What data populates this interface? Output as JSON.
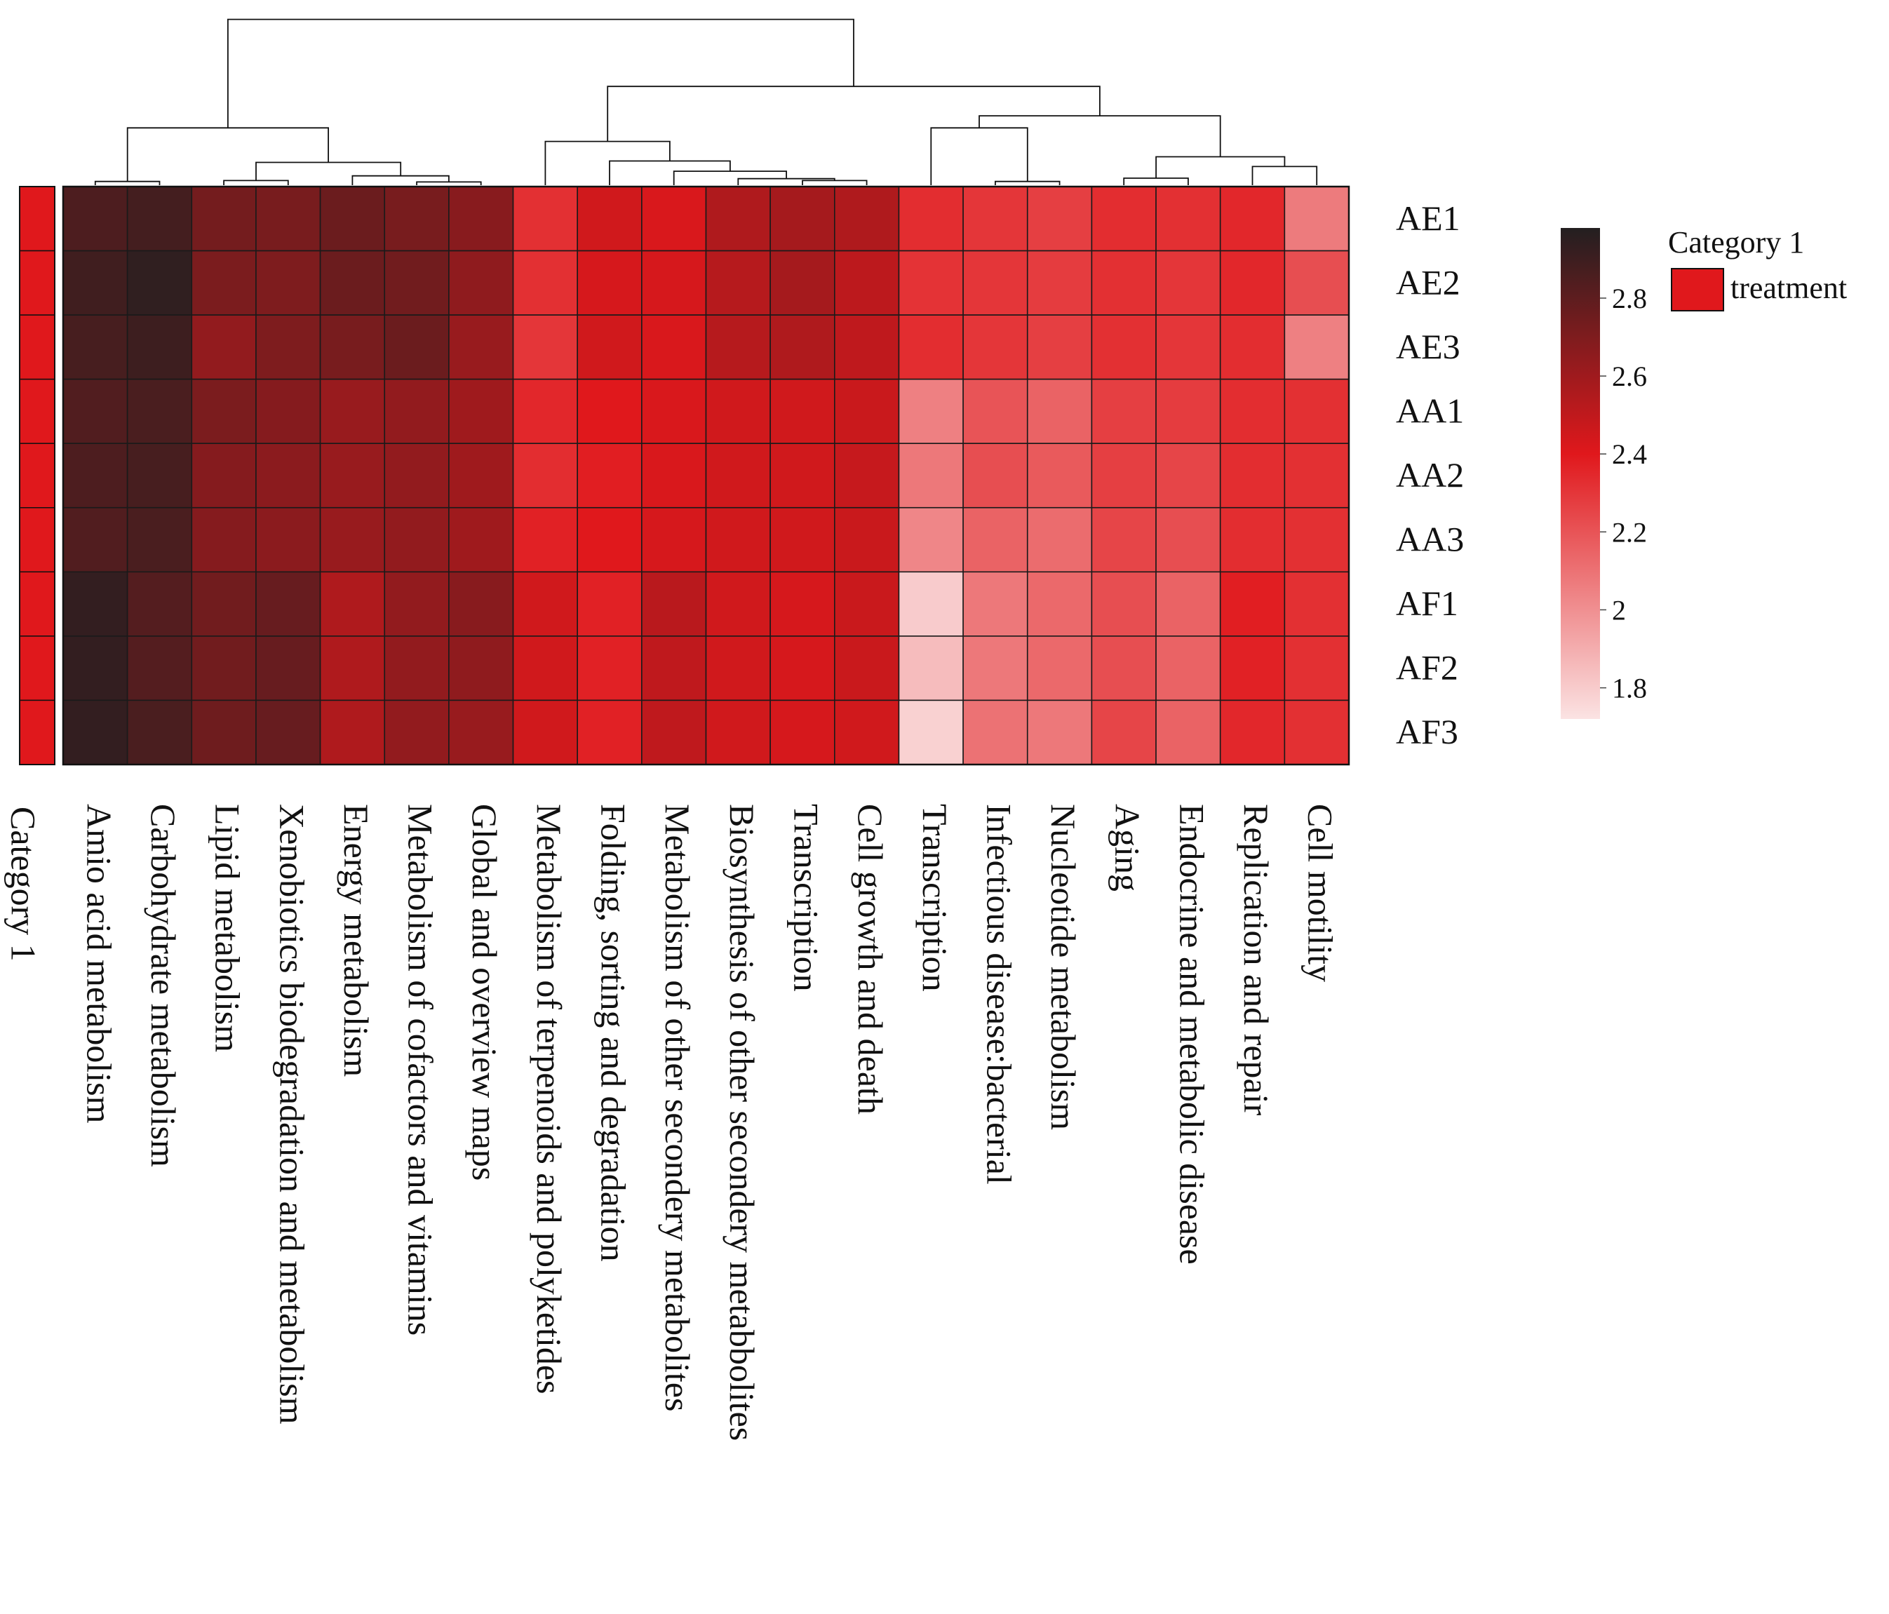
{
  "chart_data": {
    "type": "heatmap",
    "rows": [
      "AE1",
      "AE2",
      "AE3",
      "AA1",
      "AA2",
      "AA3",
      "AF1",
      "AF2",
      "AF3"
    ],
    "columns": [
      "Amio acid metabolism",
      "Carbohydrate metabolism",
      "Lipid metabolism",
      "Xenobiotics biodegradation and metabolism",
      "Energy metabolism",
      "Metabolism of cofactors and vitamins",
      "Global and overview maps",
      "Metabolism of terpenoids and polyketides",
      "Folding, sorting and degradation",
      "Metabolism of other secondery metabolites",
      "Biosynthesis of other secondery metabbolites",
      "Transcription",
      "Cell growth and death",
      "Transcription",
      "Infectious disease:bacterial",
      "Nucleotide metabolism",
      "Aging",
      "Endocrine and metabolic disease",
      "Replication and repair",
      "Cell motility"
    ],
    "category": {
      "label": "Category 1",
      "values": [
        "treatment",
        "treatment",
        "treatment",
        "treatment",
        "treatment",
        "treatment",
        "treatment",
        "treatment",
        "treatment"
      ],
      "color": "#e0181c"
    },
    "values": [
      [
        2.85,
        2.88,
        2.73,
        2.72,
        2.76,
        2.72,
        2.67,
        2.32,
        2.45,
        2.42,
        2.55,
        2.58,
        2.55,
        2.33,
        2.3,
        2.27,
        2.33,
        2.32,
        2.35,
        2.07
      ],
      [
        2.89,
        2.94,
        2.71,
        2.7,
        2.76,
        2.74,
        2.65,
        2.32,
        2.43,
        2.43,
        2.53,
        2.58,
        2.51,
        2.31,
        2.3,
        2.28,
        2.32,
        2.3,
        2.35,
        2.22
      ],
      [
        2.87,
        2.9,
        2.64,
        2.7,
        2.72,
        2.76,
        2.62,
        2.3,
        2.45,
        2.42,
        2.53,
        2.55,
        2.5,
        2.33,
        2.3,
        2.27,
        2.32,
        2.3,
        2.33,
        2.05
      ],
      [
        2.84,
        2.86,
        2.71,
        2.68,
        2.62,
        2.64,
        2.6,
        2.35,
        2.4,
        2.42,
        2.45,
        2.45,
        2.47,
        2.05,
        2.2,
        2.15,
        2.27,
        2.28,
        2.33,
        2.32
      ],
      [
        2.85,
        2.87,
        2.68,
        2.66,
        2.62,
        2.64,
        2.6,
        2.33,
        2.38,
        2.42,
        2.45,
        2.45,
        2.48,
        2.08,
        2.22,
        2.18,
        2.27,
        2.25,
        2.33,
        2.32
      ],
      [
        2.84,
        2.86,
        2.68,
        2.66,
        2.62,
        2.64,
        2.6,
        2.37,
        2.4,
        2.43,
        2.45,
        2.45,
        2.47,
        2.03,
        2.15,
        2.12,
        2.25,
        2.22,
        2.33,
        2.32
      ],
      [
        2.93,
        2.83,
        2.74,
        2.77,
        2.55,
        2.64,
        2.67,
        2.45,
        2.37,
        2.52,
        2.45,
        2.43,
        2.47,
        1.8,
        2.08,
        2.13,
        2.22,
        2.15,
        2.38,
        2.32
      ],
      [
        2.93,
        2.83,
        2.74,
        2.77,
        2.55,
        2.64,
        2.65,
        2.45,
        2.37,
        2.5,
        2.45,
        2.43,
        2.47,
        1.85,
        2.08,
        2.13,
        2.22,
        2.15,
        2.37,
        2.32
      ],
      [
        2.93,
        2.86,
        2.75,
        2.77,
        2.55,
        2.64,
        2.62,
        2.45,
        2.37,
        2.5,
        2.45,
        2.43,
        2.45,
        1.78,
        2.1,
        2.08,
        2.25,
        2.15,
        2.35,
        2.32
      ]
    ],
    "color_scale": {
      "range": [
        1.72,
        2.98
      ],
      "ticks": [
        1.8,
        2,
        2.2,
        2.4,
        2.6,
        2.8
      ],
      "tick_labels": [
        "1.8",
        "2",
        "2.2",
        "2.4",
        "2.6",
        "2.8"
      ],
      "stops": [
        {
          "value": 1.72,
          "color": "#fbe3e3"
        },
        {
          "value": 2.4,
          "color": "#e0181c"
        },
        {
          "value": 2.98,
          "color": "#231f20"
        }
      ]
    },
    "legend": {
      "title": "Category 1",
      "entries": [
        {
          "label": "treatment",
          "color": "#e0181c"
        }
      ],
      "position": "right"
    },
    "dendrogram": {
      "order": "columns",
      "merges": [
        {
          "left": "c0",
          "right": "c1",
          "level": 0.008
        },
        {
          "left": "c5",
          "right": "c6",
          "level": 0.007
        },
        {
          "left": "c4",
          "right": "m1",
          "level": 0.02
        },
        {
          "left": "c2",
          "right": "c3",
          "level": 0.01
        },
        {
          "left": "m3",
          "right": "m2",
          "level": 0.049
        },
        {
          "left": "m0",
          "right": "m4",
          "level": 0.123
        },
        {
          "left": "c11",
          "right": "c12",
          "level": 0.01
        },
        {
          "left": "c10",
          "right": "m6",
          "level": 0.014
        },
        {
          "left": "c9",
          "right": "m7",
          "level": 0.03
        },
        {
          "left": "c8",
          "right": "m8",
          "level": 0.052
        },
        {
          "left": "c7",
          "right": "m9",
          "level": 0.094
        },
        {
          "left": "c14",
          "right": "c15",
          "level": 0.008
        },
        {
          "left": "c16",
          "right": "c17",
          "level": 0.015
        },
        {
          "left": "c18",
          "right": "c19",
          "level": 0.04
        },
        {
          "left": "m12",
          "right": "m13",
          "level": 0.061
        },
        {
          "left": "c13",
          "right": "m11",
          "level": 0.123
        },
        {
          "left": "m15",
          "right": "m14",
          "level": 0.149
        },
        {
          "left": "m10",
          "right": "m16",
          "level": 0.212
        },
        {
          "left": "m5",
          "right": "m17",
          "level": 0.356
        }
      ]
    }
  }
}
